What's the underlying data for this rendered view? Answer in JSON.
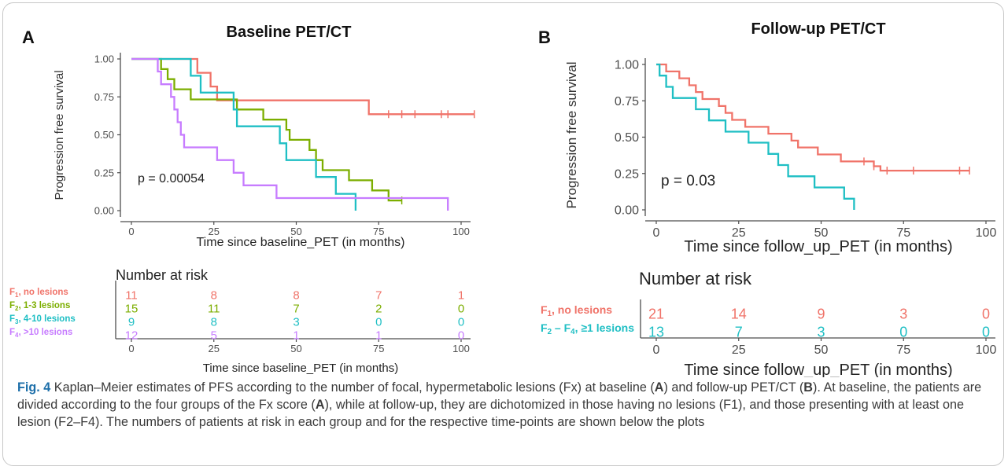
{
  "colors": {
    "f1": "#F07369",
    "f2": "#7CAE00",
    "f3": "#1FBFC4",
    "f4": "#C77CFF",
    "follow_f2f4": "#1FBFC4",
    "axis": "#4d4d4d",
    "tick_text": "#4d4d4d",
    "caption_blue": "#1d6fa9"
  },
  "panels": {
    "A": {
      "letter": "A",
      "title": "Baseline PET/CT",
      "ylabel": "Progression free survival",
      "xlabel": "Time since baseline_PET (in months)",
      "pvalue": "p = 0.00054",
      "risk_title": "Number at risk",
      "risk_xlabel": "Time since baseline_PET (in months)"
    },
    "B": {
      "letter": "B",
      "title": "Follow-up PET/CT",
      "ylabel": "Progression free survival",
      "xlabel": "Time since follow_up_PET (in months)",
      "pvalue": "p = 0.03",
      "risk_title": "Number at risk",
      "risk_xlabel": "Time since follow_up_PET (in months)"
    }
  },
  "chart_data": [
    {
      "type": "line",
      "subtype": "kaplan-meier step",
      "title": "Baseline PET/CT",
      "xlabel": "Time since baseline_PET (in months)",
      "ylabel": "Progression free survival",
      "xlim": [
        0,
        100
      ],
      "ylim": [
        0,
        1
      ],
      "x_ticks": [
        0,
        25,
        50,
        75,
        100
      ],
      "y_ticks": [
        0.0,
        0.25,
        0.5,
        0.75,
        1.0
      ],
      "y_tick_labels": [
        "0.00",
        "0.25",
        "0.50",
        "0.75",
        "1.00"
      ],
      "annotation": "p = 0.00054",
      "series": [
        {
          "color": "#F07369",
          "label": "F1, no lesions",
          "label_sub": "1",
          "label_prefix": "F",
          "label_suffix": ", no lesions",
          "points": [
            [
              0,
              1.0
            ],
            [
              20,
              1.0
            ],
            [
              20,
              0.909
            ],
            [
              24,
              0.909
            ],
            [
              24,
              0.818
            ],
            [
              26,
              0.818
            ],
            [
              26,
              0.727
            ],
            [
              72,
              0.727
            ],
            [
              72,
              0.636
            ],
            [
              104,
              0.636
            ]
          ],
          "censor_x": [
            78,
            82,
            86,
            94,
            96,
            104
          ]
        },
        {
          "color": "#7CAE00",
          "label": "F2, 1-3 lesions",
          "label_sub": "2",
          "label_prefix": "F",
          "label_suffix": ", 1-3 lesions",
          "points": [
            [
              0,
              1.0
            ],
            [
              9,
              1.0
            ],
            [
              9,
              0.933
            ],
            [
              11,
              0.933
            ],
            [
              11,
              0.867
            ],
            [
              13,
              0.867
            ],
            [
              13,
              0.8
            ],
            [
              18,
              0.8
            ],
            [
              18,
              0.733
            ],
            [
              32,
              0.733
            ],
            [
              32,
              0.667
            ],
            [
              40,
              0.667
            ],
            [
              40,
              0.6
            ],
            [
              47,
              0.6
            ],
            [
              47,
              0.533
            ],
            [
              48,
              0.533
            ],
            [
              48,
              0.467
            ],
            [
              54,
              0.467
            ],
            [
              54,
              0.4
            ],
            [
              56,
              0.4
            ],
            [
              56,
              0.333
            ],
            [
              58,
              0.333
            ],
            [
              58,
              0.267
            ],
            [
              66,
              0.267
            ],
            [
              66,
              0.2
            ],
            [
              73,
              0.2
            ],
            [
              73,
              0.133
            ],
            [
              78,
              0.133
            ],
            [
              78,
              0.067
            ],
            [
              82,
              0.067
            ]
          ],
          "censor_x": [
            82
          ]
        },
        {
          "color": "#1FBFC4",
          "label": "F3, 4-10 lesions",
          "label_sub": "3",
          "label_prefix": "F",
          "label_suffix": ", 4-10 lesions",
          "points": [
            [
              0,
              1.0
            ],
            [
              18,
              1.0
            ],
            [
              18,
              0.889
            ],
            [
              21,
              0.889
            ],
            [
              21,
              0.778
            ],
            [
              31,
              0.778
            ],
            [
              31,
              0.667
            ],
            [
              32,
              0.667
            ],
            [
              32,
              0.556
            ],
            [
              45,
              0.556
            ],
            [
              45,
              0.444
            ],
            [
              47,
              0.444
            ],
            [
              47,
              0.333
            ],
            [
              56,
              0.333
            ],
            [
              56,
              0.222
            ],
            [
              62,
              0.222
            ],
            [
              62,
              0.111
            ],
            [
              68,
              0.111
            ],
            [
              68,
              0.0
            ]
          ],
          "censor_x": []
        },
        {
          "color": "#C77CFF",
          "label": "F4, >10 lesions",
          "label_sub": "4",
          "label_prefix": "F",
          "label_suffix": ", >10 lesions",
          "points": [
            [
              0,
              1.0
            ],
            [
              8,
              1.0
            ],
            [
              8,
              0.917
            ],
            [
              9,
              0.917
            ],
            [
              9,
              0.833
            ],
            [
              12,
              0.833
            ],
            [
              12,
              0.75
            ],
            [
              13,
              0.75
            ],
            [
              13,
              0.667
            ],
            [
              14,
              0.667
            ],
            [
              14,
              0.583
            ],
            [
              15,
              0.583
            ],
            [
              15,
              0.5
            ],
            [
              16,
              0.5
            ],
            [
              16,
              0.417
            ],
            [
              26,
              0.417
            ],
            [
              26,
              0.333
            ],
            [
              31,
              0.333
            ],
            [
              31,
              0.25
            ],
            [
              34,
              0.25
            ],
            [
              34,
              0.167
            ],
            [
              44,
              0.167
            ],
            [
              44,
              0.083
            ],
            [
              96,
              0.083
            ],
            [
              96,
              0.0
            ]
          ],
          "censor_x": []
        }
      ],
      "risk_table": {
        "title": "Number at risk",
        "times": [
          0,
          25,
          50,
          75,
          100
        ],
        "rows": [
          {
            "prefix": "F",
            "sub": "1",
            "suffix": ", no lesions",
            "color": "#F07369",
            "values": [
              "11",
              "8",
              "8",
              "7",
              "1"
            ]
          },
          {
            "prefix": "F",
            "sub": "2",
            "suffix": ", 1-3 lesions",
            "color": "#7CAE00",
            "values": [
              "15",
              "11",
              "7",
              "2",
              "0"
            ]
          },
          {
            "prefix": "F",
            "sub": "3",
            "suffix": ", 4-10 lesions",
            "color": "#1FBFC4",
            "values": [
              "9",
              "8",
              "3",
              "0",
              "0"
            ]
          },
          {
            "prefix": "F",
            "sub": "4",
            "suffix": ", >10 lesions",
            "color": "#C77CFF",
            "values": [
              "12",
              "5",
              "1",
              "1",
              "0"
            ]
          }
        ],
        "xlabel": "Time since baseline_PET (in months)"
      }
    },
    {
      "type": "line",
      "subtype": "kaplan-meier step",
      "title": "Follow-up PET/CT",
      "xlabel": "Time since follow_up_PET (in months)",
      "ylabel": "Progression free survival",
      "xlim": [
        0,
        100
      ],
      "ylim": [
        0,
        1
      ],
      "x_ticks": [
        0,
        25,
        50,
        75,
        100
      ],
      "y_ticks": [
        0.0,
        0.25,
        0.5,
        0.75,
        1.0
      ],
      "y_tick_labels": [
        "0.00",
        "0.25",
        "0.50",
        "0.75",
        "1.00"
      ],
      "annotation": "p = 0.03",
      "series": [
        {
          "color": "#F07369",
          "label": "F1, no lesions",
          "points": [
            [
              0,
              1.0
            ],
            [
              3,
              1.0
            ],
            [
              3,
              0.952
            ],
            [
              7,
              0.952
            ],
            [
              7,
              0.905
            ],
            [
              10,
              0.905
            ],
            [
              10,
              0.857
            ],
            [
              12,
              0.857
            ],
            [
              12,
              0.81
            ],
            [
              14,
              0.81
            ],
            [
              14,
              0.762
            ],
            [
              19,
              0.762
            ],
            [
              19,
              0.714
            ],
            [
              21,
              0.714
            ],
            [
              21,
              0.667
            ],
            [
              23,
              0.667
            ],
            [
              23,
              0.619
            ],
            [
              27,
              0.619
            ],
            [
              27,
              0.571
            ],
            [
              34,
              0.571
            ],
            [
              34,
              0.524
            ],
            [
              41,
              0.524
            ],
            [
              41,
              0.476
            ],
            [
              43,
              0.476
            ],
            [
              43,
              0.429
            ],
            [
              49,
              0.429
            ],
            [
              49,
              0.381
            ],
            [
              56,
              0.381
            ],
            [
              56,
              0.333
            ],
            [
              66,
              0.333
            ],
            [
              66,
              0.3
            ],
            [
              68,
              0.3
            ],
            [
              68,
              0.27
            ],
            [
              95,
              0.27
            ]
          ],
          "censor_x": [
            63,
            66,
            70,
            78,
            92,
            95
          ]
        },
        {
          "color": "#1FBFC4",
          "label": "F2 – F4, ≥1 lesions",
          "points": [
            [
              0,
              1.0
            ],
            [
              1,
              1.0
            ],
            [
              1,
              0.923
            ],
            [
              3,
              0.923
            ],
            [
              3,
              0.846
            ],
            [
              5,
              0.846
            ],
            [
              5,
              0.769
            ],
            [
              12,
              0.769
            ],
            [
              12,
              0.692
            ],
            [
              16,
              0.692
            ],
            [
              16,
              0.615
            ],
            [
              21,
              0.615
            ],
            [
              21,
              0.538
            ],
            [
              28,
              0.538
            ],
            [
              28,
              0.462
            ],
            [
              34,
              0.462
            ],
            [
              34,
              0.385
            ],
            [
              37,
              0.385
            ],
            [
              37,
              0.308
            ],
            [
              40,
              0.308
            ],
            [
              40,
              0.231
            ],
            [
              48,
              0.231
            ],
            [
              48,
              0.154
            ],
            [
              57,
              0.154
            ],
            [
              57,
              0.077
            ],
            [
              60,
              0.077
            ],
            [
              60,
              0.0
            ]
          ],
          "censor_x": []
        }
      ],
      "risk_table": {
        "title": "Number at risk",
        "times": [
          0,
          25,
          50,
          75,
          100
        ],
        "rows": [
          {
            "prefix": "F",
            "sub": "1",
            "suffix": ", no lesions",
            "color": "#F07369",
            "values": [
              "21",
              "14",
              "9",
              "3",
              "0"
            ]
          },
          {
            "prefix": "F",
            "sub": "2",
            "mid": " – F",
            "sub2": "4",
            "suffix": ", ≥1 lesions",
            "color": "#1FBFC4",
            "values": [
              "13",
              "7",
              "3",
              "0",
              "0"
            ]
          }
        ],
        "xlabel": "Time since follow_up_PET (in months)"
      }
    }
  ],
  "caption": {
    "label": "Fig. 4",
    "text_1": "  Kaplan–Meier estimates of PFS according to the number of focal, hypermetabolic lesions (Fx) at baseline (",
    "bold_A1": "A",
    "text_2": ") and follow-up PET/CT (",
    "bold_B1": "B",
    "text_3": "). At baseline, the patients are divided according to the four groups of the Fx score (",
    "bold_A2": "A",
    "text_4": "), while at follow-up, they are dichotomized in those having no lesions (F1), and those presenting with at least one lesion (F2–F4). The numbers of patients at risk in each group and for the respective time-points are shown below the plots"
  }
}
